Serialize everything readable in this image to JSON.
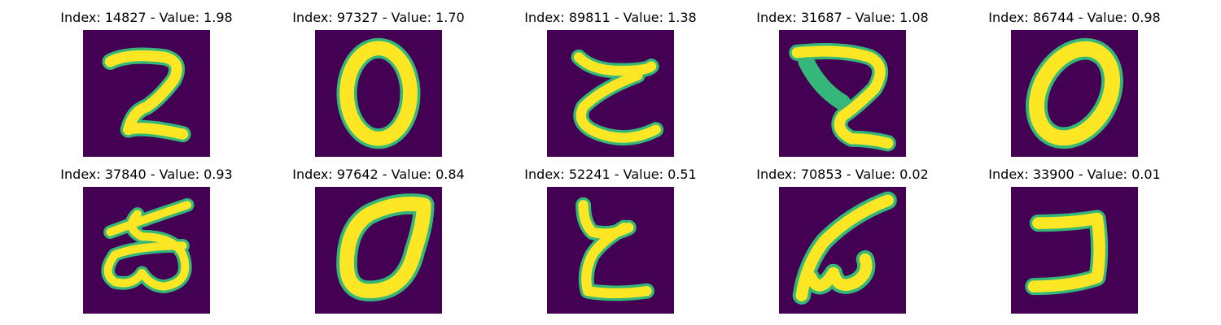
{
  "colors": {
    "background": "#440154",
    "stroke": "#fde725",
    "edge": "#35b779"
  },
  "panels": [
    {
      "title": "Index: 14827 - Value: 1.98",
      "glyph": "digit-2"
    },
    {
      "title": "Index: 97327 - Value: 1.70",
      "glyph": "digit-0"
    },
    {
      "title": "Index: 89811 - Value: 1.38",
      "glyph": "rotated-2"
    },
    {
      "title": "Index: 31687 - Value: 1.08",
      "glyph": "digit-2-loop"
    },
    {
      "title": "Index: 86744 - Value: 0.98",
      "glyph": "tilted-0"
    },
    {
      "title": "Index: 37840 - Value: 0.93",
      "glyph": "script-glyph"
    },
    {
      "title": "Index: 97642 - Value: 0.84",
      "glyph": "leaf-0"
    },
    {
      "title": "Index: 52241 - Value: 0.51",
      "glyph": "rotated-2-tall"
    },
    {
      "title": "Index: 70853 - Value: 0.02",
      "glyph": "scribble"
    },
    {
      "title": "Index: 33900 - Value: 0.01",
      "glyph": "bracket-shape"
    }
  ]
}
